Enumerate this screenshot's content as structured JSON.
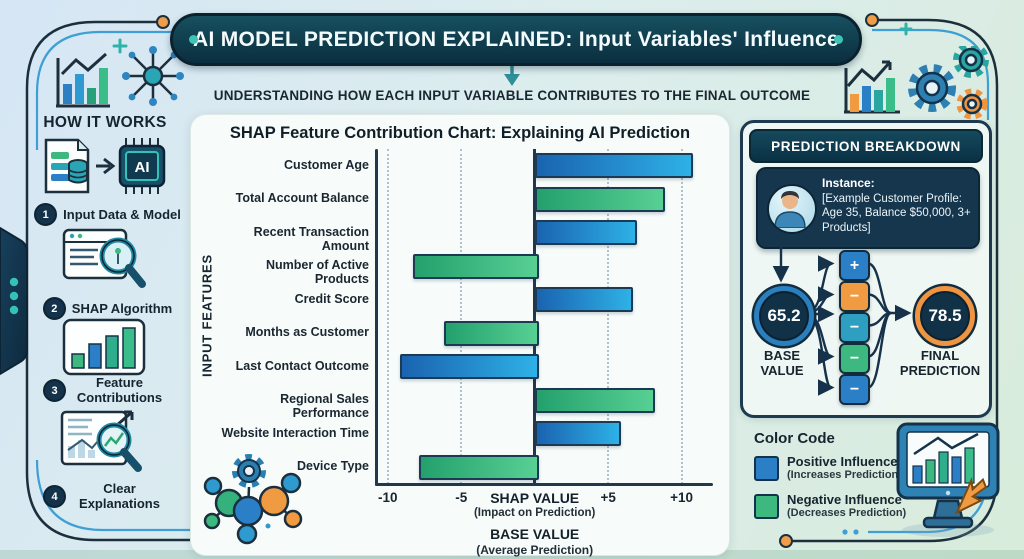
{
  "title_banner": "AI MODEL PREDICTION EXPLAINED: Input Variables' Influence",
  "subtitle": "UNDERSTANDING HOW EACH INPUT VARIABLE CONTRIBUTES TO THE FINAL OUTCOME",
  "sidebar": {
    "heading": "HOW IT WORKS",
    "steps": [
      {
        "num": "1",
        "label": "Input Data & Model"
      },
      {
        "num": "2",
        "label": "SHAP Algorithm"
      },
      {
        "num": "3",
        "label": "Feature Contributions"
      },
      {
        "num": "4",
        "label": "Clear Explanations"
      }
    ]
  },
  "chart_data": {
    "type": "bar",
    "orientation": "horizontal",
    "title": "SHAP Feature Contribution Chart: Explaining AI Prediction",
    "categories": [
      "Customer Age",
      "Total Account Balance",
      "Recent Transaction Amount",
      "Number of Active Products",
      "Credit Score",
      "Months as Customer",
      "Last Contact Outcome",
      "Regional Sales Performance",
      "Website Interaction Time",
      "Device Type"
    ],
    "values": [
      10.5,
      8.6,
      6.7,
      -8.3,
      6.4,
      -6.2,
      -9.2,
      7.9,
      5.6,
      -7.9
    ],
    "bar_colors": [
      "blue",
      "green",
      "blue",
      "green",
      "blue",
      "green",
      "blue",
      "green",
      "blue",
      "green"
    ],
    "ylabel": "INPUT FEATURES",
    "xlabel": "SHAP VALUE",
    "xlabel_sub": "(Impact on Prediction)",
    "xlabel2": "BASE VALUE",
    "xlabel2_sub": "(Average Prediction)",
    "xticks": [
      -10,
      -5,
      5,
      10
    ],
    "xlim": [
      -10.8,
      12
    ],
    "grid": "dotted vertical at ticks",
    "legend_position": "outside bottom-right"
  },
  "breakdown": {
    "header": "PREDICTION BREAKDOWN",
    "instance_label": "Instance:",
    "instance_text": "[Example Customer Profile: Age 35, Balance $50,000, 3+ Products]",
    "base_value": "65.2",
    "base_label": "BASE VALUE",
    "final_value": "78.5",
    "final_label": "FINAL PREDICTION",
    "contribution_signs": [
      "+",
      "−",
      "−",
      "−",
      "−"
    ],
    "contribution_colors": [
      "#2b7fc6",
      "#f09a42",
      "#2e9fc0",
      "#3db87e",
      "#2b7fc6"
    ]
  },
  "legend": {
    "heading": "Color Code",
    "items": [
      {
        "label": "Positive Influence",
        "sub": "(Increases Prediction)",
        "color": "#2b7fc6"
      },
      {
        "label": "Negative Influence",
        "sub": "(Decreases Prediction)",
        "color": "#3db87e"
      }
    ]
  },
  "colors": {
    "banner_bg": "#0d3b4f",
    "positive_bar": "#1f6fb8",
    "negative_bar": "#35b17e",
    "accent_teal": "#3fc3b4",
    "accent_orange": "#f09a42",
    "frame_dark": "#1c2f3d",
    "card_bg": "#f7fcfa"
  },
  "icons": [
    "bar-chart-icon",
    "network-icon",
    "document-database-icon",
    "ai-chip-icon",
    "window-magnifier-icon",
    "bars-box-icon",
    "doc-magnifier-trend-icon",
    "person-avatar-icon",
    "gear-icon",
    "molecule-icon",
    "monitor-chart-icon",
    "cursor-icon",
    "plus-icon",
    "down-arrow-icon"
  ]
}
